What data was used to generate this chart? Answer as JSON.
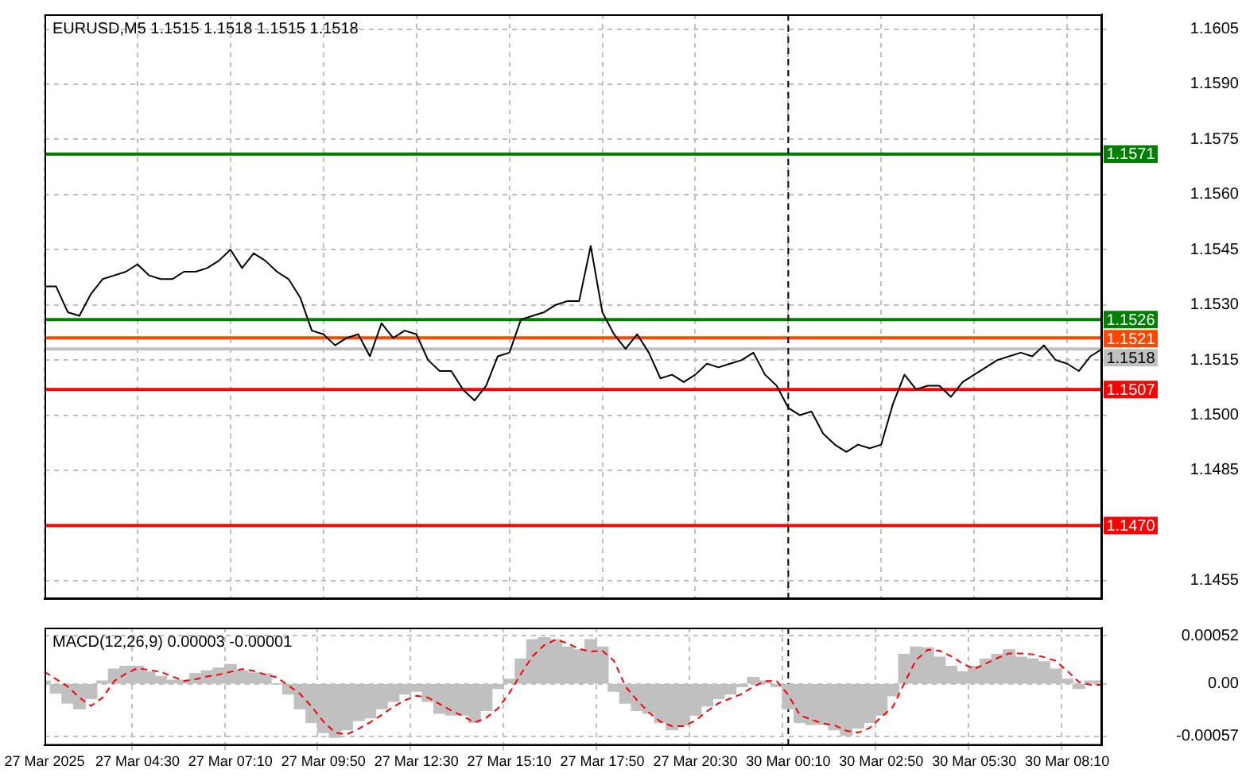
{
  "chart_data": [
    {
      "type": "line",
      "title": "EURUSD,M5 1.1515 1.1518 1.1515 1.1518",
      "categories": [
        "27 Mar 2025",
        null,
        null,
        null,
        null,
        null,
        null,
        null,
        "27 Mar 04:30",
        null,
        null,
        null,
        null,
        null,
        null,
        null,
        "27 Mar 07:10",
        null,
        null,
        null,
        null,
        null,
        null,
        null,
        "27 Mar 09:50",
        null,
        null,
        null,
        null,
        null,
        null,
        null,
        "27 Mar 12:30",
        null,
        null,
        null,
        null,
        null,
        null,
        null,
        "27 Mar 15:10",
        null,
        null,
        null,
        null,
        null,
        null,
        null,
        "27 Mar 17:50",
        null,
        null,
        null,
        null,
        null,
        null,
        null,
        "27 Mar 20:30",
        null,
        null,
        null,
        null,
        null,
        null,
        null,
        "30 Mar 00:10",
        null,
        null,
        null,
        null,
        null,
        null,
        null,
        "30 Mar 02:50",
        null,
        null,
        null,
        null,
        null,
        null,
        null,
        "30 Mar 05:30",
        null,
        null,
        null,
        null,
        null,
        null,
        null,
        "30 Mar 08:10",
        null,
        null,
        null
      ],
      "series": [
        {
          "color": "#000000",
          "values": [
            1.1535,
            1.1535,
            1.1528,
            1.1527,
            1.1533,
            1.1537,
            1.1538,
            1.1539,
            1.1541,
            1.1538,
            1.1537,
            1.1537,
            1.1539,
            1.1539,
            1.154,
            1.1542,
            1.1545,
            1.154,
            1.1544,
            1.1542,
            1.1539,
            1.1537,
            1.1532,
            1.1523,
            1.1522,
            1.1519,
            1.1521,
            1.1522,
            1.1516,
            1.1525,
            1.1521,
            1.1523,
            1.1522,
            1.1515,
            1.1512,
            1.1512,
            1.1507,
            1.1504,
            1.1508,
            1.1516,
            1.1517,
            1.1526,
            1.1527,
            1.1528,
            1.153,
            1.1531,
            1.1531,
            1.1546,
            1.1528,
            1.1522,
            1.1518,
            1.1522,
            1.1517,
            1.151,
            1.1511,
            1.1509,
            1.1511,
            1.1514,
            1.1513,
            1.1514,
            1.1515,
            1.1517,
            1.1511,
            1.1508,
            1.1502,
            1.15,
            1.1501,
            1.1495,
            1.1492,
            1.149,
            1.1492,
            1.1491,
            1.1492,
            1.1503,
            1.1511,
            1.1507,
            1.1508,
            1.1508,
            1.1505,
            1.1509,
            1.1511,
            1.1513,
            1.1515,
            1.1516,
            1.1517,
            1.1516,
            1.1519,
            1.1515,
            1.1514,
            1.1512,
            1.1516,
            1.1518
          ]
        }
      ],
      "ylim": [
        1.145,
        1.1609
      ],
      "yticks": [
        1.1605,
        {
          "value": 1.159,
          "label": "1.1590"
        },
        1.1575,
        {
          "value": 1.156,
          "label": "1.1560"
        },
        1.1545,
        {
          "value": 1.153,
          "label": "1.1530"
        },
        1.1515,
        {
          "value": 1.15,
          "label": "1.1500"
        },
        1.1485,
        {
          "value": 1.147,
          "label": null
        },
        1.1455
      ],
      "grid": true,
      "tick_labels": "y",
      "ref_lines": [
        {
          "axis": "y",
          "value": 1.1571,
          "label": "1.1571",
          "color": "#008000"
        },
        {
          "axis": "y",
          "value": 1.1526,
          "label": "1.1526",
          "color": "#008000"
        },
        {
          "axis": "y",
          "value": 1.1521,
          "label": "1.1521",
          "color": "#ff4500"
        },
        {
          "axis": "y",
          "value": 1.1518,
          "label": "1.1518",
          "color": "#c0c0c0"
        },
        {
          "axis": "y",
          "value": 1.1507,
          "label": "1.1507",
          "color": "#ff0000"
        },
        {
          "axis": "y",
          "value": 1.147,
          "label": "1.1470",
          "color": "#ff0000"
        },
        {
          "axis": "x",
          "value": "30 Mar 00:10",
          "color": "#000000",
          "line_style": "dashed"
        }
      ]
    },
    {
      "type": "bar",
      "title": "MACD(12,26,9) 0.00003 -0.00001",
      "categories": [
        "27 Mar 2025",
        null,
        null,
        null,
        null,
        null,
        null,
        null,
        "27 Mar 04:30",
        null,
        null,
        null,
        null,
        null,
        null,
        null,
        "27 Mar 07:10",
        null,
        null,
        null,
        null,
        null,
        null,
        null,
        "27 Mar 09:50",
        null,
        null,
        null,
        null,
        null,
        null,
        null,
        "27 Mar 12:30",
        null,
        null,
        null,
        null,
        null,
        null,
        null,
        "27 Mar 15:10",
        null,
        null,
        null,
        null,
        null,
        null,
        null,
        "27 Mar 17:50",
        null,
        null,
        null,
        null,
        null,
        null,
        null,
        "27 Mar 20:30",
        null,
        null,
        null,
        null,
        null,
        null,
        null,
        "30 Mar 00:10",
        null,
        null,
        null,
        null,
        null,
        null,
        null,
        "30 Mar 02:50",
        null,
        null,
        null,
        null,
        null,
        null,
        null,
        "30 Mar 05:30",
        null,
        null,
        null,
        null,
        null,
        null,
        null,
        "30 Mar 08:10",
        null,
        null,
        null
      ],
      "series": [
        {
          "color": "#c0c0c0",
          "values": [
            3e-05,
            -0.0001,
            -0.00021,
            -0.00027,
            -0.00016,
            3e-05,
            0.00016,
            0.00019,
            0.00019,
            0.00013,
            8e-05,
            4e-05,
            4e-05,
            0.00011,
            0.00014,
            0.00017,
            0.00021,
            0.00014,
            0.00012,
            0.00011,
            0,
            -0.00011,
            -0.00027,
            -0.00042,
            -0.00053,
            -0.00058,
            -0.0005,
            -0.0004,
            -0.00037,
            -0.00027,
            -0.00019,
            -0.00011,
            -8e-05,
            -0.00019,
            -0.00032,
            -0.00034,
            -0.00034,
            -0.00042,
            -0.00029,
            -5e-05,
            5e-05,
            0.00027,
            0.00048,
            0.0005,
            0.00048,
            0.0004,
            0.00037,
            0.00048,
            0.0004,
            -8e-05,
            -0.00021,
            -0.00029,
            -0.00032,
            -0.00042,
            -0.0005,
            -0.00045,
            -0.00034,
            -0.00024,
            -0.00016,
            -0.00011,
            -3e-05,
            7e-05,
            3e-05,
            -3e-05,
            -0.00027,
            -0.00042,
            -0.00044,
            -0.00044,
            -0.0005,
            -0.00056,
            -0.00048,
            -0.00042,
            -0.00034,
            -0.00013,
            0.00032,
            0.0004,
            0.00039,
            0.00029,
            0.00019,
            0.00013,
            0.00019,
            0.00027,
            0.00032,
            0.00037,
            0.00029,
            0.00027,
            0.00024,
            0.00016,
            5e-05,
            -5e-05,
            3e-05,
            3e-05
          ]
        },
        {
          "type": "line",
          "color": "#ff0000",
          "line_style": "dashed",
          "values": [
            0.00013,
            5e-05,
            -3e-05,
            -0.00015,
            -0.00024,
            -0.00015,
            3e-05,
            0.00011,
            0.00017,
            0.00015,
            0.00013,
            8e-05,
            3e-05,
            5e-05,
            8e-05,
            0.0001,
            0.00013,
            0.00016,
            0.00014,
            0.0001,
            7e-05,
            -2e-05,
            -0.00011,
            -0.00025,
            -0.00041,
            -0.00053,
            -0.00055,
            -0.00049,
            -0.00042,
            -0.00034,
            -0.00025,
            -0.00018,
            -0.00013,
            -0.00015,
            -0.00022,
            -0.00029,
            -0.00035,
            -0.00042,
            -0.00037,
            -0.00027,
            -0.0001,
            0.00011,
            0.0003,
            0.00042,
            0.00048,
            0.00044,
            0.00038,
            0.00035,
            0.00036,
            0.00025,
            -3e-05,
            -0.00018,
            -0.00031,
            -0.00041,
            -0.00046,
            -0.00046,
            -0.0004,
            -0.0003,
            -0.00021,
            -0.00016,
            -0.00011,
            -3e-05,
            3e-05,
            3e-05,
            -0.00012,
            -0.00034,
            -0.00039,
            -0.00043,
            -0.00045,
            -0.00051,
            -0.00053,
            -0.00048,
            -0.00036,
            -0.00025,
            1e-05,
            0.00026,
            0.00037,
            0.00036,
            0.0003,
            0.00022,
            0.00016,
            0.00022,
            0.00028,
            0.00033,
            0.00033,
            0.00032,
            0.00029,
            0.00025,
            0.00014,
            2e-05,
            -1e-05,
            -1e-05
          ]
        }
      ],
      "ylim": [
        -0.00067,
        0.00061
      ],
      "yticks": [
        0.00052,
        {
          "value": 0,
          "label": "0.00"
        },
        -0.00057
      ],
      "grid": true,
      "ref_lines": [
        {
          "axis": "x",
          "value": "30 Mar 00:10",
          "color": "#000000",
          "line_style": "dashed"
        }
      ]
    }
  ]
}
